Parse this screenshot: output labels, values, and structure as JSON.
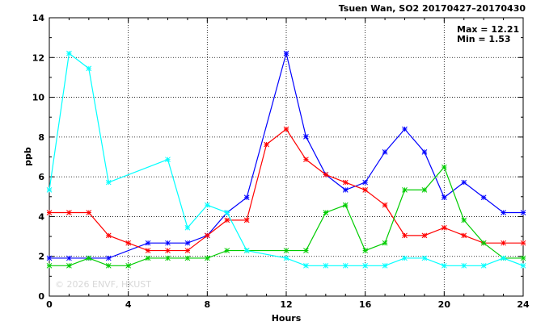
{
  "chart_data": {
    "type": "line",
    "title": "Tsuen Wan, SO2 20170427–20170430",
    "xlabel": "Hours",
    "ylabel": "ppb",
    "xlim": [
      0,
      24
    ],
    "ylim": [
      0,
      14
    ],
    "xticks": [
      0,
      4,
      8,
      12,
      16,
      20,
      24
    ],
    "yticks": [
      0,
      2,
      4,
      6,
      8,
      10,
      12,
      14
    ],
    "grid": true,
    "max_label": "Max = 12.21",
    "min_label": "Min =  1.53",
    "watermark": "© 2026  ENVF, HKUST",
    "x": [
      0,
      1,
      2,
      3,
      4,
      5,
      6,
      7,
      8,
      9,
      10,
      11,
      12,
      13,
      14,
      15,
      16,
      17,
      18,
      19,
      20,
      21,
      22,
      23,
      24
    ],
    "series": [
      {
        "color": "#0000ff",
        "values": [
          1.91,
          1.91,
          1.91,
          1.91,
          null,
          2.67,
          2.67,
          2.67,
          3.05,
          4.2,
          4.96,
          null,
          12.21,
          8.02,
          6.11,
          5.34,
          5.72,
          7.25,
          8.4,
          7.25,
          4.96,
          5.72,
          4.96,
          4.2,
          4.2
        ]
      },
      {
        "color": "#ff0000",
        "values": [
          4.2,
          4.2,
          4.2,
          3.05,
          2.67,
          2.29,
          2.29,
          2.29,
          3.05,
          3.82,
          3.82,
          7.63,
          8.4,
          6.87,
          6.11,
          5.72,
          5.34,
          4.58,
          3.05,
          3.05,
          3.44,
          3.05,
          2.67,
          2.67,
          2.67
        ]
      },
      {
        "color": "#00cc00",
        "values": [
          1.53,
          1.53,
          1.91,
          1.53,
          1.53,
          1.91,
          1.91,
          1.91,
          1.91,
          2.29,
          2.29,
          null,
          2.29,
          2.29,
          4.2,
          4.58,
          2.29,
          2.67,
          5.34,
          5.34,
          6.49,
          3.82,
          2.67,
          1.91,
          1.91
        ]
      },
      {
        "color": "#00ffff",
        "values": [
          5.34,
          12.21,
          11.45,
          5.72,
          null,
          null,
          6.87,
          3.44,
          4.58,
          4.2,
          2.29,
          null,
          1.91,
          1.53,
          1.53,
          1.53,
          1.53,
          1.53,
          1.91,
          1.91,
          1.53,
          1.53,
          1.53,
          1.91,
          1.53
        ]
      }
    ]
  }
}
